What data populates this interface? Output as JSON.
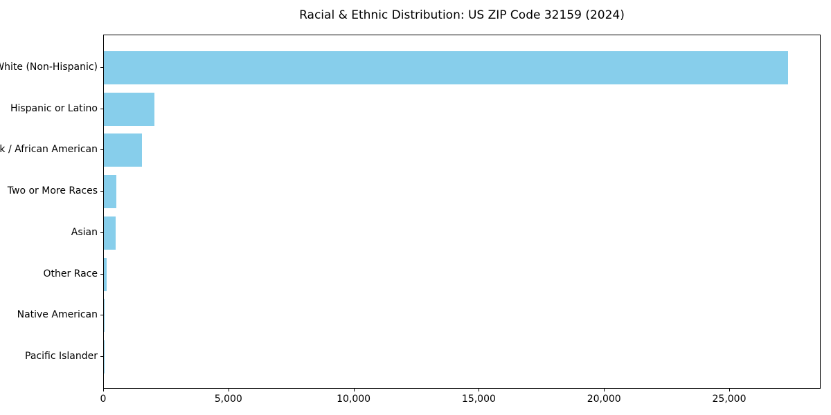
{
  "chart_data": {
    "type": "bar",
    "orientation": "horizontal",
    "title": "Racial & Ethnic Distribution: US ZIP Code 32159 (2024)",
    "categories": [
      "White (Non-Hispanic)",
      "Hispanic or Latino",
      "Black / African American",
      "Two or More Races",
      "Asian",
      "Other Race",
      "Native American",
      "Pacific Islander"
    ],
    "values": [
      27320,
      2030,
      1530,
      510,
      470,
      100,
      30,
      10
    ],
    "xlabel": "",
    "ylabel": "",
    "xlim": [
      0,
      28650
    ],
    "xticks": [
      0,
      5000,
      10000,
      15000,
      20000,
      25000
    ],
    "xtick_labels": [
      "0",
      "5,000",
      "10,000",
      "15,000",
      "20,000",
      "25,000"
    ],
    "bar_color": "#87ceeb",
    "axis_color": "#000000",
    "text_color": "#000000",
    "background_color": "#ffffff",
    "grid": false,
    "legend": false
  }
}
